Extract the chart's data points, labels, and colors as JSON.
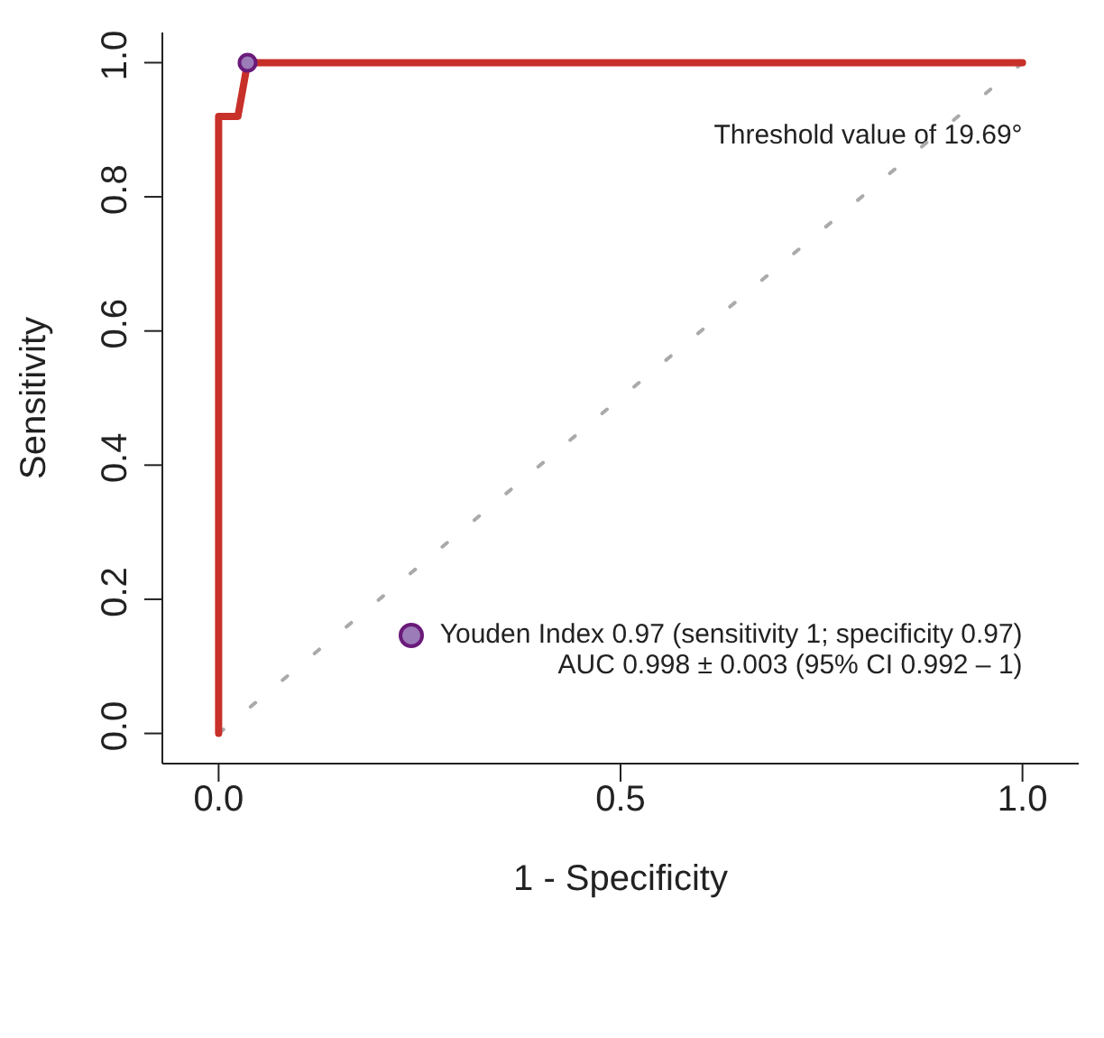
{
  "chart_data": {
    "type": "line",
    "xlabel": "1 - Specificity",
    "ylabel": "Sensitivity",
    "xlim": [
      -0.07,
      1.07
    ],
    "ylim": [
      -0.045,
      1.045
    ],
    "xticks": [
      {
        "value": 0,
        "label": "0.0"
      },
      {
        "value": 0.5,
        "label": "0.5"
      },
      {
        "value": 1,
        "label": "1.0"
      }
    ],
    "yticks": [
      {
        "value": 0,
        "label": "0.0"
      },
      {
        "value": 0.2,
        "label": "0.2"
      },
      {
        "value": 0.4,
        "label": "0.4"
      },
      {
        "value": 0.6,
        "label": "0.6"
      },
      {
        "value": 0.8,
        "label": "0.8"
      },
      {
        "value": 1,
        "label": "1.0"
      }
    ],
    "grid": false,
    "legend": "bottom right",
    "series": [
      {
        "color": "#aaaaaa",
        "line_style": "dotted",
        "marker": "none",
        "x": [
          0,
          1
        ],
        "values": [
          0,
          1
        ]
      },
      {
        "color": "#c8302a",
        "line_style": "solid",
        "marker": "none",
        "x": [
          0,
          0,
          0.024,
          0.036,
          1
        ],
        "values": [
          0,
          0.92,
          0.92,
          1,
          1
        ]
      },
      {
        "type": "scatter",
        "name": "Youden Index 0.97 (sensitivity 1; specificity 0.97)",
        "color": "#9b7bb8",
        "marker": "circle",
        "x": [
          0.036
        ],
        "values": [
          1
        ]
      }
    ],
    "annotations": [
      "Threshold value of 19.69°",
      "AUC 0.998 ± 0.003 (95% CI 0.992 – 1)"
    ]
  }
}
